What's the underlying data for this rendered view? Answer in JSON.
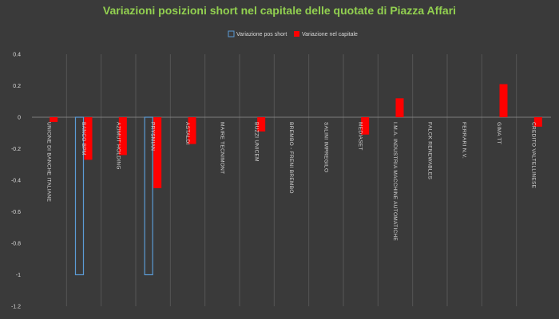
{
  "chart_data": {
    "type": "bar",
    "title": "Variazioni posizioni short nel capitale delle quotate di Piazza Affari",
    "legend_position": "top-center",
    "grid": "vertical",
    "ylim": [
      -1.2,
      0.4
    ],
    "yticks": [
      "0.4",
      "0.2",
      "0",
      "-0.2",
      "-0.4",
      "-0.6",
      "-0.8",
      "-1",
      "-1.2"
    ],
    "ytick_values": [
      0.4,
      0.2,
      0,
      -0.2,
      -0.4,
      -0.6,
      -0.8,
      -1,
      -1.2
    ],
    "categories": [
      "UNIONE DI BANCHE ITALIANE",
      "BANCO BPM",
      "AZIMUT HOLDING",
      "PRYSMIAN",
      "ASTALDI",
      "MAIRE TECNIMONT",
      "BUZZI UNICEM",
      "BREMBO - FRENI BREMBO",
      "SALINI IMPREGILO",
      "MEDIASET",
      "I.M.A. INDUSTRIA MACCHINE AUTOMATICHE",
      "FALCK RENEWABLES",
      "FERRARI N.V.",
      "GIMA TT",
      "CREDITO VALTELLINESE"
    ],
    "series": [
      {
        "name": "Variazione pos short",
        "color": "#5b9bd5",
        "style": "outline",
        "values": [
          0,
          -1,
          0,
          -1,
          0,
          0,
          0,
          0,
          0,
          0,
          0,
          0,
          0,
          0,
          0
        ]
      },
      {
        "name": "Variazione nel capitale",
        "color": "#ff0000",
        "style": "filled",
        "values": [
          -0.03,
          -0.27,
          -0.24,
          -0.45,
          -0.17,
          0,
          -0.09,
          0,
          0,
          -0.11,
          0.12,
          0,
          0,
          0.21,
          -0.06
        ]
      }
    ]
  },
  "colors": {
    "background": "#3a3a3a",
    "title": "#92d050",
    "text": "#d9d9d9",
    "grid": "#555555"
  }
}
